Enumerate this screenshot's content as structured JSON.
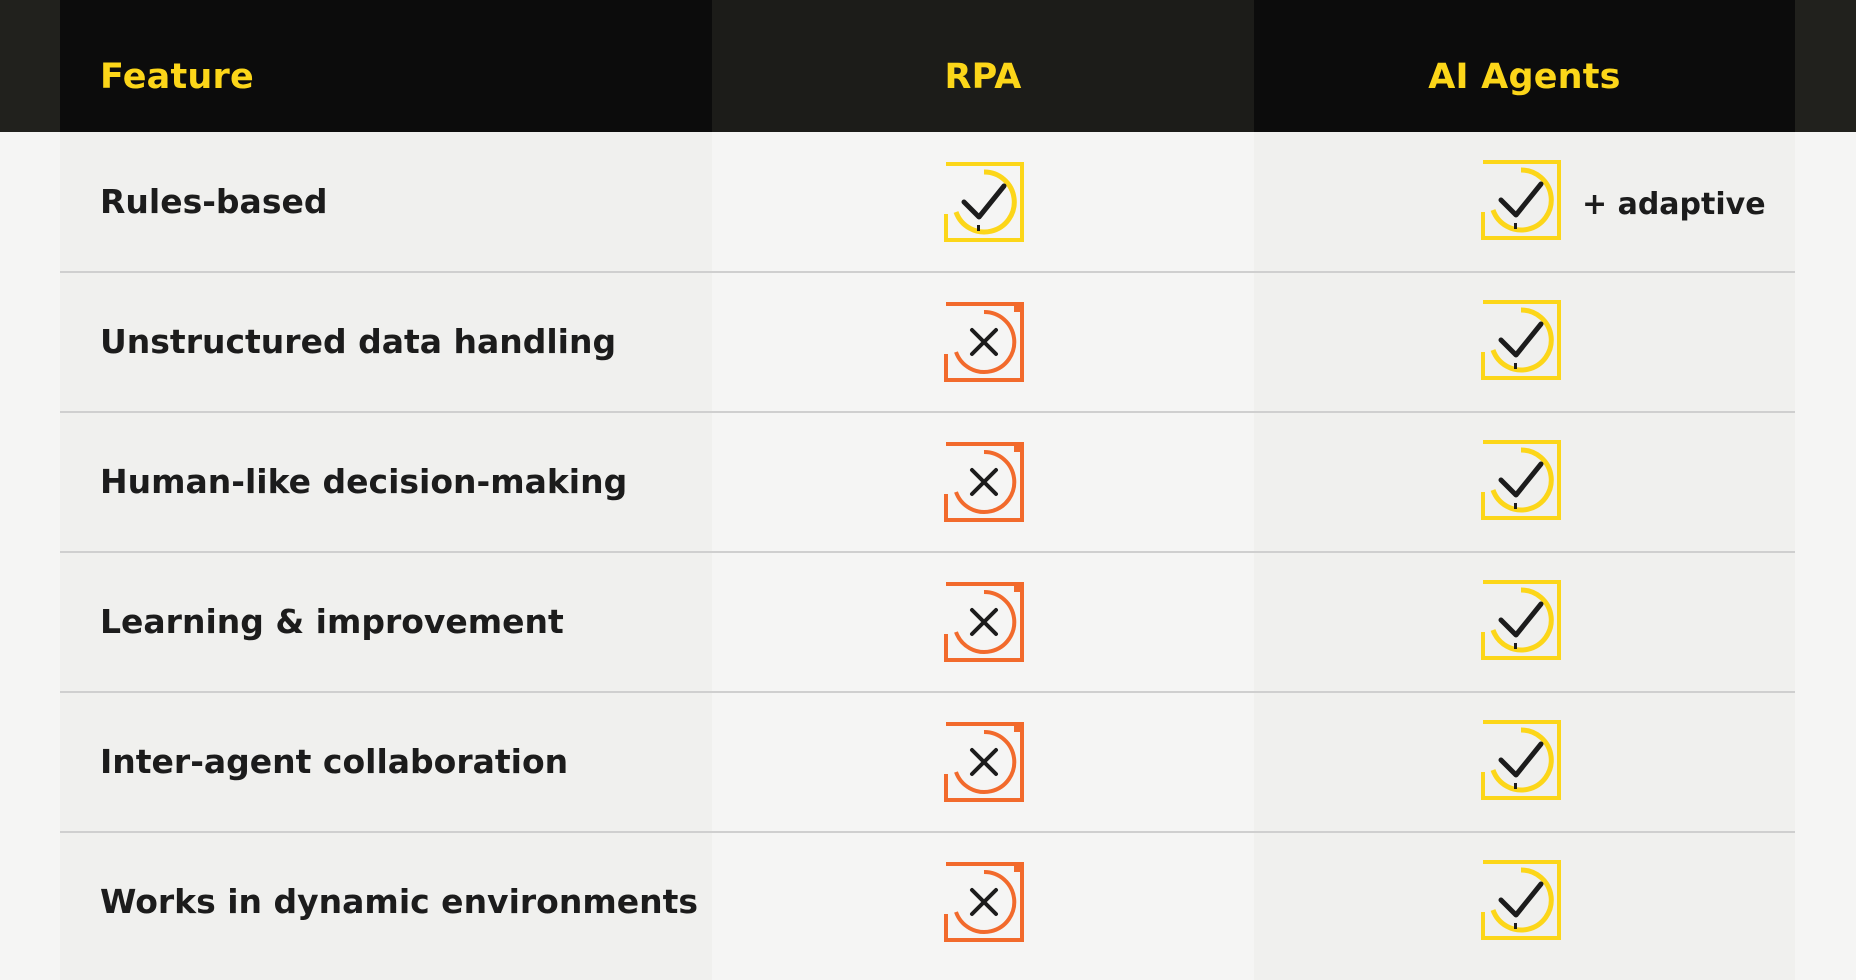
{
  "header": {
    "feature": "Feature",
    "rpa": "RPA",
    "ai_agents": "AI Agents"
  },
  "rows": [
    {
      "feature": "Rules-based",
      "rpa": "check",
      "ai_agents": "check",
      "ai_note": "+ adaptive"
    },
    {
      "feature": "Unstructured data handling",
      "rpa": "cross",
      "ai_agents": "check",
      "ai_note": ""
    },
    {
      "feature": "Human-like decision-making",
      "rpa": "cross",
      "ai_agents": "check",
      "ai_note": ""
    },
    {
      "feature": "Learning & improvement",
      "rpa": "cross",
      "ai_agents": "check",
      "ai_note": ""
    },
    {
      "feature": "Inter-agent collaboration",
      "rpa": "cross",
      "ai_agents": "check",
      "ai_note": ""
    },
    {
      "feature": "Works in dynamic environments",
      "rpa": "cross",
      "ai_agents": "check",
      "ai_note": ""
    }
  ],
  "icons": {
    "check": "check-icon",
    "cross": "cross-icon"
  },
  "colors": {
    "accent_yellow": "#fcd619",
    "cross_orange": "#f26a2c",
    "header_bg": "#0c0c0c",
    "text_dark": "#1c1c1c"
  }
}
